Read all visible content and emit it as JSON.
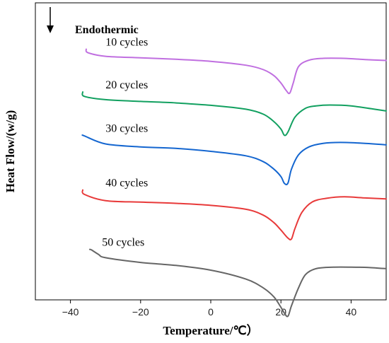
{
  "chart_data": {
    "type": "line",
    "title": "",
    "xlabel": "Temperature/℃）",
    "ylabel": "Heat Flow/(w/g)",
    "annotation": "Endothermic",
    "annotation_arrow": "down",
    "xlim": [
      -50,
      50
    ],
    "ylim": [
      0,
      100
    ],
    "xticks": [
      -40,
      -20,
      0,
      20,
      40
    ],
    "y_tick_labels": false,
    "grid": false,
    "legend": "none",
    "series": [
      {
        "name": "10 cycles",
        "color": "#c06fe0",
        "label_x": -30,
        "x": [
          -35.5,
          -35,
          -30,
          -20,
          -10,
          0,
          10,
          15,
          18,
          20,
          21.5,
          22.5,
          23.5,
          25,
          28,
          32,
          38,
          44,
          50
        ],
        "y": [
          84.4,
          83.2,
          82.0,
          81.5,
          81.0,
          80.3,
          79.0,
          77.5,
          75.5,
          73.0,
          70.5,
          69.6,
          73.0,
          78.5,
          80.7,
          81.3,
          81.3,
          80.9,
          80.6
        ]
      },
      {
        "name": "20 cycles",
        "color": "#12a060",
        "label_x": -30,
        "x": [
          -36.5,
          -36,
          -30,
          -20,
          -10,
          0,
          10,
          15,
          18,
          20,
          21,
          22,
          24,
          27,
          30,
          34,
          40,
          46,
          50
        ],
        "y": [
          70.0,
          68.5,
          67.4,
          66.8,
          66.3,
          65.5,
          64.2,
          62.5,
          60.0,
          57.5,
          55.4,
          56.5,
          61.5,
          64.5,
          65.3,
          65.6,
          65.3,
          64.3,
          63.6
        ]
      },
      {
        "name": "30 cycles",
        "color": "#1466d0",
        "label_x": -30,
        "x": [
          -36.5,
          -36,
          -30,
          -20,
          -10,
          0,
          10,
          15,
          18,
          20,
          21,
          22,
          23,
          25,
          28,
          32,
          37,
          44,
          50
        ],
        "y": [
          55.4,
          55.2,
          52.5,
          51.5,
          51.0,
          50.0,
          48.5,
          46.5,
          44.0,
          41.5,
          39.2,
          39.3,
          44.0,
          48.8,
          51.5,
          52.7,
          53.0,
          52.7,
          52.2
        ]
      },
      {
        "name": "40 cycles",
        "color": "#e83a3a",
        "label_x": -30,
        "x": [
          -36.5,
          -36,
          -30,
          -20,
          -10,
          0,
          10,
          15,
          18,
          20,
          22,
          23,
          24,
          26,
          29,
          33,
          38,
          44,
          50
        ],
        "y": [
          37.0,
          35.5,
          33.4,
          32.9,
          32.5,
          31.8,
          30.5,
          28.5,
          26.0,
          23.5,
          20.8,
          20.5,
          24.0,
          29.5,
          33.0,
          34.2,
          34.7,
          34.3,
          34.0
        ]
      },
      {
        "name": "50 cycles",
        "color": "#666666",
        "label_x": -31,
        "x": [
          -34.5,
          -34,
          -32,
          -30,
          -20,
          -10,
          0,
          10,
          15,
          18,
          20,
          21,
          22,
          23,
          25,
          27,
          30,
          35,
          40,
          45,
          50
        ],
        "y": [
          17.0,
          16.8,
          15.3,
          14.2,
          12.6,
          11.6,
          10.0,
          7.0,
          4.0,
          1.0,
          -2.5,
          -4.5,
          -5.5,
          -2.0,
          4.0,
          8.5,
          10.5,
          11.0,
          11.0,
          10.9,
          10.5
        ]
      }
    ]
  }
}
